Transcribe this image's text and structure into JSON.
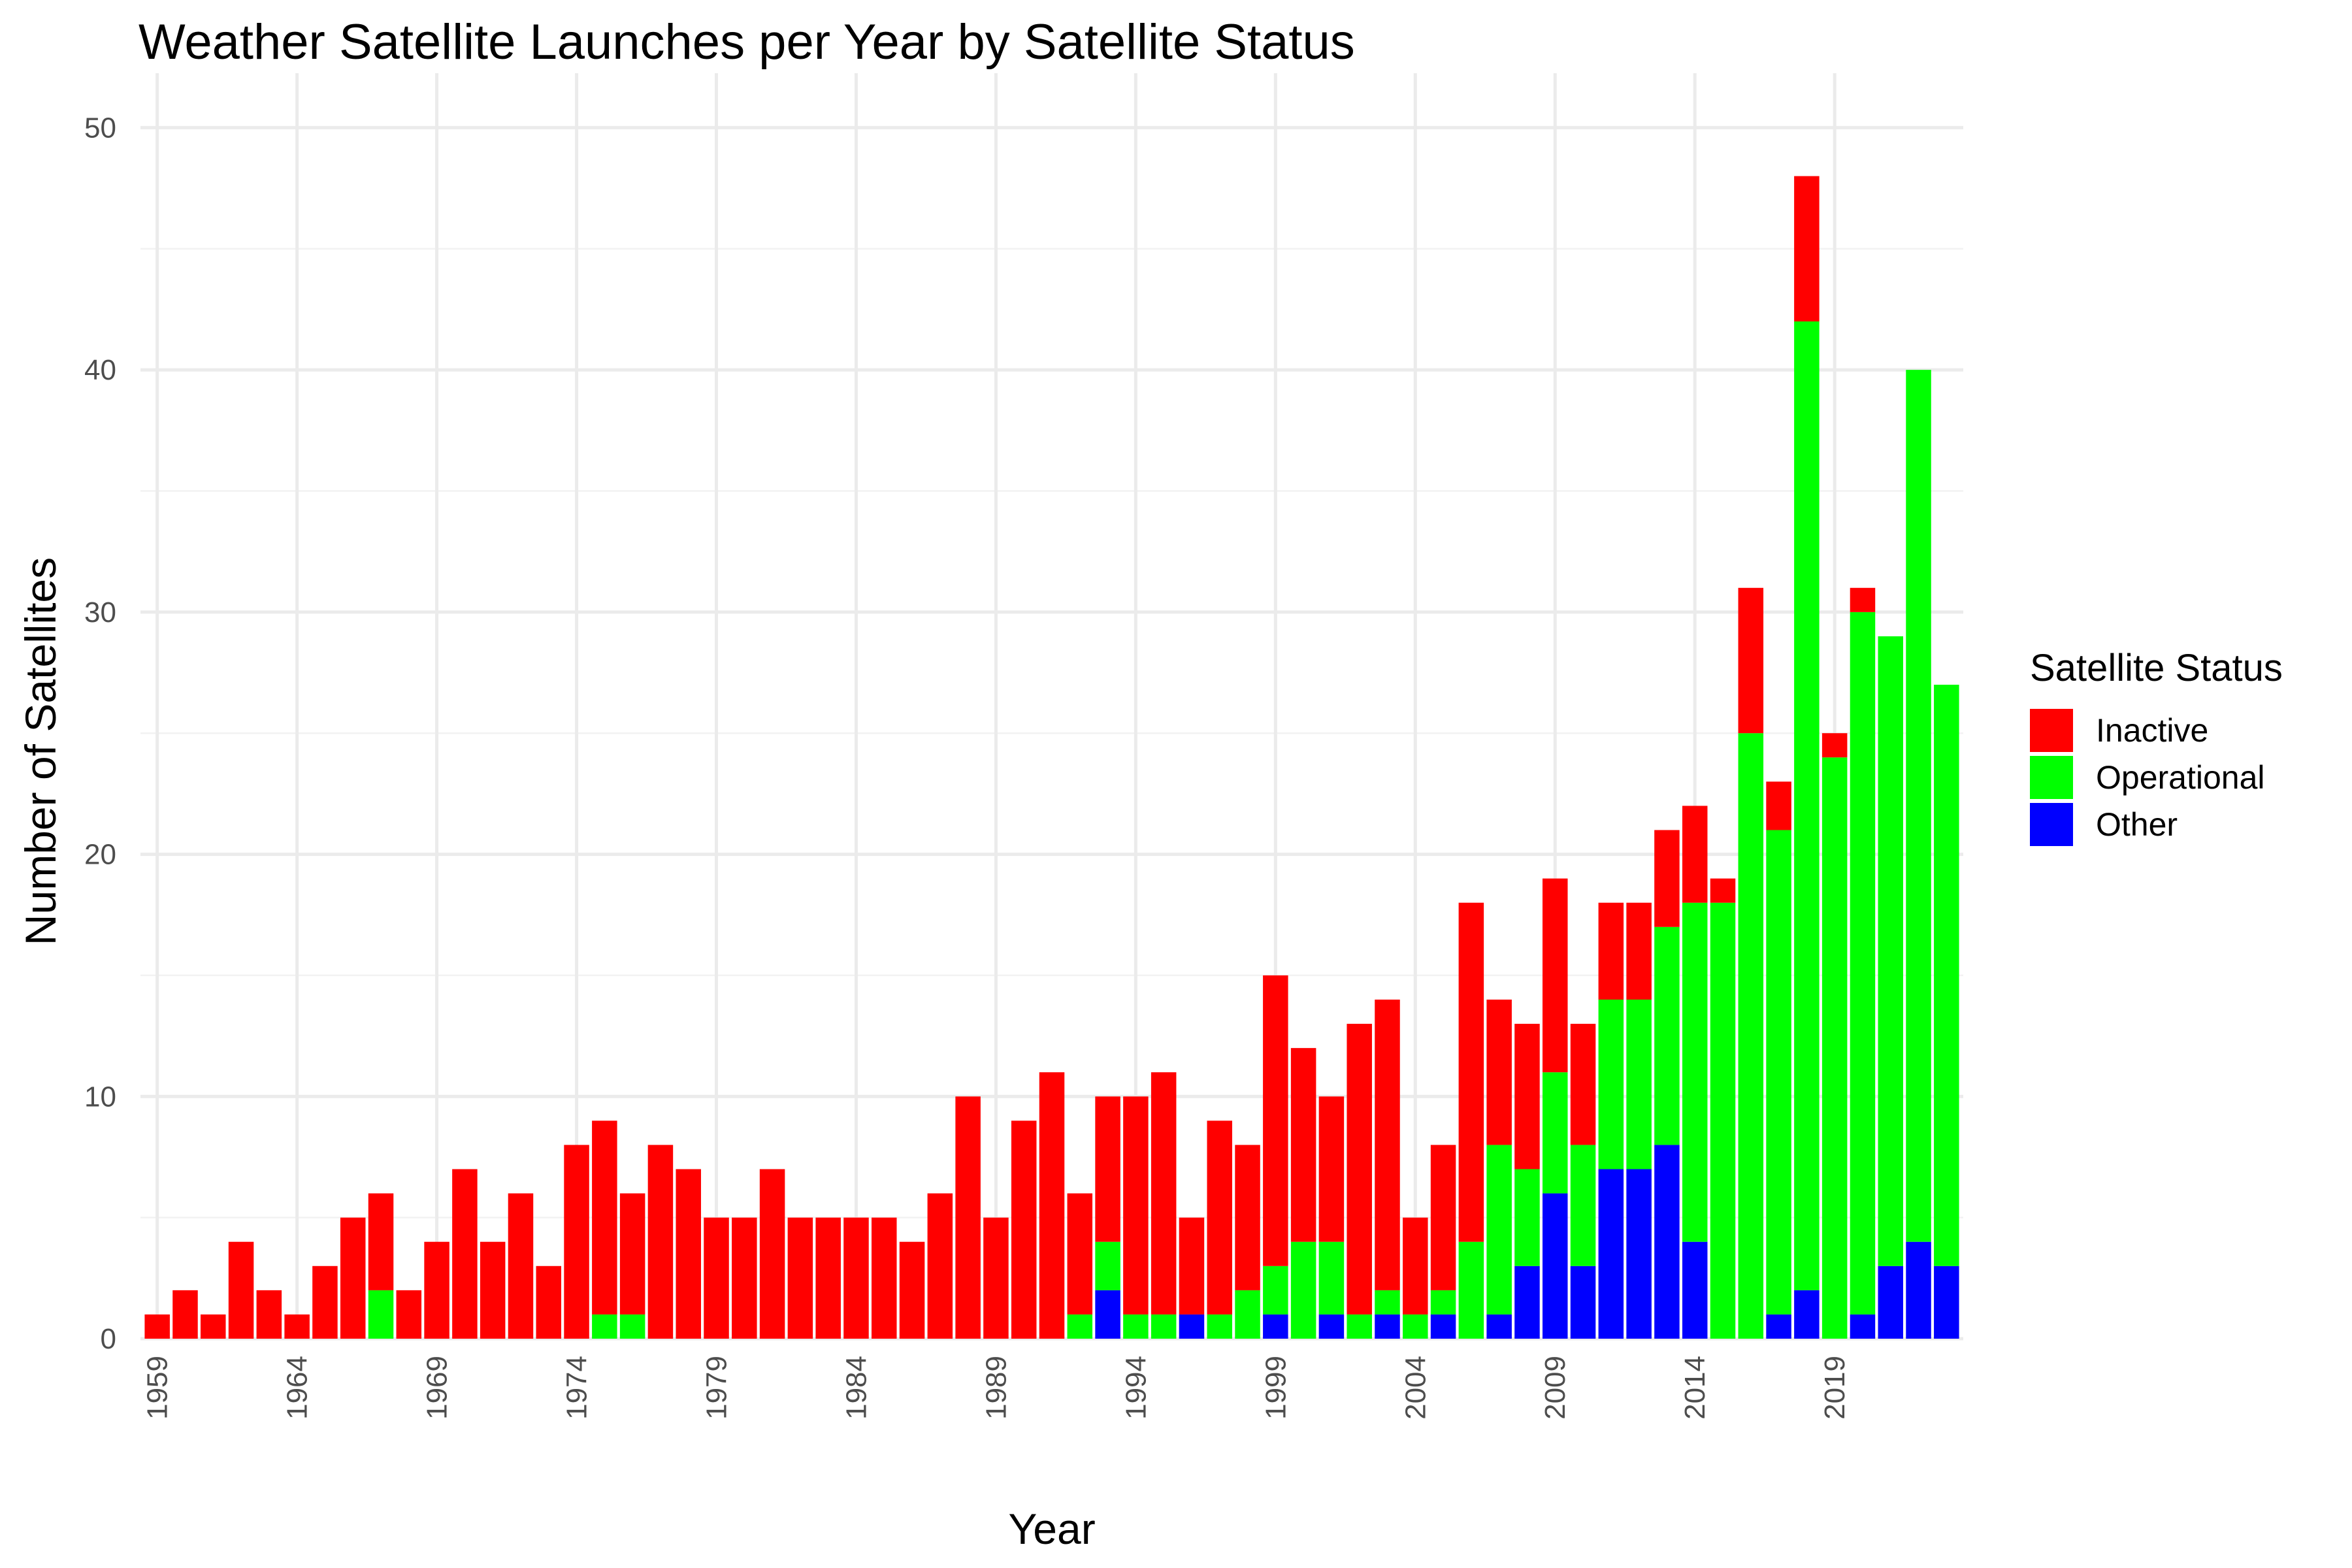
{
  "chart_data": {
    "type": "bar",
    "stacked": true,
    "title": "Weather Satellite Launches per Year by Satellite Status",
    "xlabel": "Year",
    "ylabel": "Number of Satellites",
    "ylim": [
      0,
      50
    ],
    "y_ticks": [
      0,
      10,
      20,
      30,
      40,
      50
    ],
    "x_ticks": [
      1959,
      1964,
      1969,
      1974,
      1979,
      1984,
      1989,
      1994,
      1999,
      2004,
      2009,
      2014,
      2019
    ],
    "grid": true,
    "legend": {
      "title": "Satellite Status",
      "placement": "right"
    },
    "categories": [
      1959,
      1960,
      1961,
      1962,
      1963,
      1964,
      1965,
      1966,
      1967,
      1968,
      1969,
      1970,
      1971,
      1972,
      1973,
      1974,
      1975,
      1976,
      1977,
      1978,
      1979,
      1980,
      1981,
      1982,
      1983,
      1984,
      1985,
      1986,
      1987,
      1988,
      1989,
      1990,
      1991,
      1992,
      1993,
      1994,
      1995,
      1996,
      1997,
      1998,
      1999,
      2000,
      2001,
      2002,
      2003,
      2004,
      2005,
      2006,
      2007,
      2008,
      2009,
      2010,
      2011,
      2012,
      2013,
      2014,
      2015,
      2016,
      2017,
      2018,
      2019,
      2020,
      2021,
      2022,
      2023
    ],
    "series": [
      {
        "name": "Other",
        "color": "#0000ff",
        "values": [
          0,
          0,
          0,
          0,
          0,
          0,
          0,
          0,
          0,
          0,
          0,
          0,
          0,
          0,
          0,
          0,
          0,
          0,
          0,
          0,
          0,
          0,
          0,
          0,
          0,
          0,
          0,
          0,
          0,
          0,
          0,
          0,
          0,
          0,
          2,
          0,
          0,
          1,
          0,
          0,
          1,
          0,
          1,
          0,
          1,
          0,
          1,
          0,
          1,
          3,
          6,
          3,
          7,
          7,
          8,
          4,
          0,
          0,
          1,
          2,
          0,
          1,
          3,
          4,
          3
        ]
      },
      {
        "name": "Operational",
        "color": "#00ff00",
        "values": [
          0,
          0,
          0,
          0,
          0,
          0,
          0,
          0,
          2,
          0,
          0,
          0,
          0,
          0,
          0,
          0,
          1,
          1,
          0,
          0,
          0,
          0,
          0,
          0,
          0,
          0,
          0,
          0,
          0,
          0,
          0,
          0,
          0,
          1,
          2,
          1,
          1,
          0,
          1,
          2,
          2,
          4,
          3,
          1,
          1,
          1,
          1,
          4,
          7,
          4,
          5,
          5,
          7,
          7,
          9,
          14,
          18,
          25,
          20,
          40,
          24,
          29,
          26,
          36,
          24
        ]
      },
      {
        "name": "Inactive",
        "color": "#ff0000",
        "values": [
          1,
          2,
          1,
          4,
          2,
          1,
          3,
          5,
          4,
          2,
          4,
          7,
          4,
          6,
          3,
          8,
          8,
          5,
          8,
          7,
          5,
          5,
          7,
          5,
          5,
          5,
          5,
          4,
          6,
          10,
          5,
          9,
          11,
          5,
          6,
          9,
          10,
          4,
          8,
          6,
          12,
          8,
          6,
          12,
          12,
          4,
          6,
          14,
          6,
          6,
          8,
          5,
          4,
          4,
          4,
          4,
          1,
          6,
          2,
          6,
          1,
          1,
          0,
          0,
          0
        ]
      }
    ]
  }
}
